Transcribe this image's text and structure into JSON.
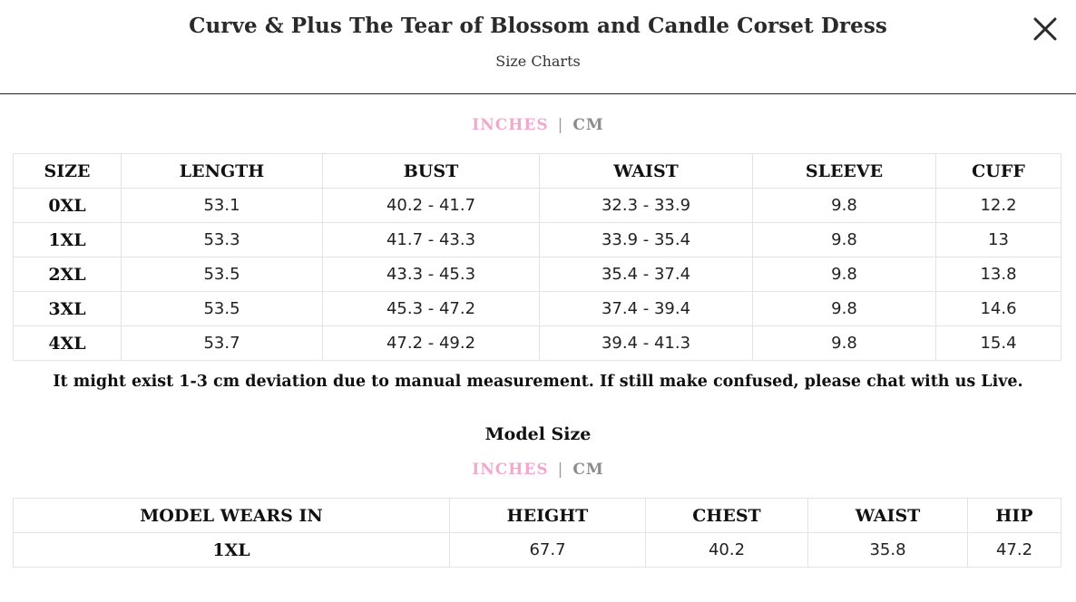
{
  "header": {
    "title": "Curve & Plus The Tear of Blossom and Candle Corset Dress",
    "subtitle": "Size Charts",
    "close_icon": "close-icon"
  },
  "unit_toggle": {
    "inches": "INCHES",
    "separator": "|",
    "cm": "CM",
    "active_color": "#f2a8cf",
    "inactive_color": "#8c8c8c"
  },
  "size_chart": {
    "headers": [
      "SIZE",
      "LENGTH",
      "BUST",
      "WAIST",
      "SLEEVE",
      "CUFF"
    ],
    "rows": [
      [
        "0XL",
        "53.1",
        "40.2 - 41.7",
        "32.3 - 33.9",
        "9.8",
        "12.2"
      ],
      [
        "1XL",
        "53.3",
        "41.7 - 43.3",
        "33.9 - 35.4",
        "9.8",
        "13"
      ],
      [
        "2XL",
        "53.5",
        "43.3 - 45.3",
        "35.4 - 37.4",
        "9.8",
        "13.8"
      ],
      [
        "3XL",
        "53.5",
        "45.3 - 47.2",
        "37.4 - 39.4",
        "9.8",
        "14.6"
      ],
      [
        "4XL",
        "53.7",
        "47.2 - 49.2",
        "39.4 - 41.3",
        "9.8",
        "15.4"
      ]
    ]
  },
  "note": "It might exist 1-3 cm deviation due to manual measurement. If still make confused, please chat with us Live.",
  "model_size": {
    "heading": "Model Size",
    "headers": [
      "MODEL WEARS IN",
      "HEIGHT",
      "CHEST",
      "WAIST",
      "HIP"
    ],
    "rows": [
      [
        "1XL",
        "67.7",
        "40.2",
        "35.8",
        "47.2"
      ]
    ]
  }
}
